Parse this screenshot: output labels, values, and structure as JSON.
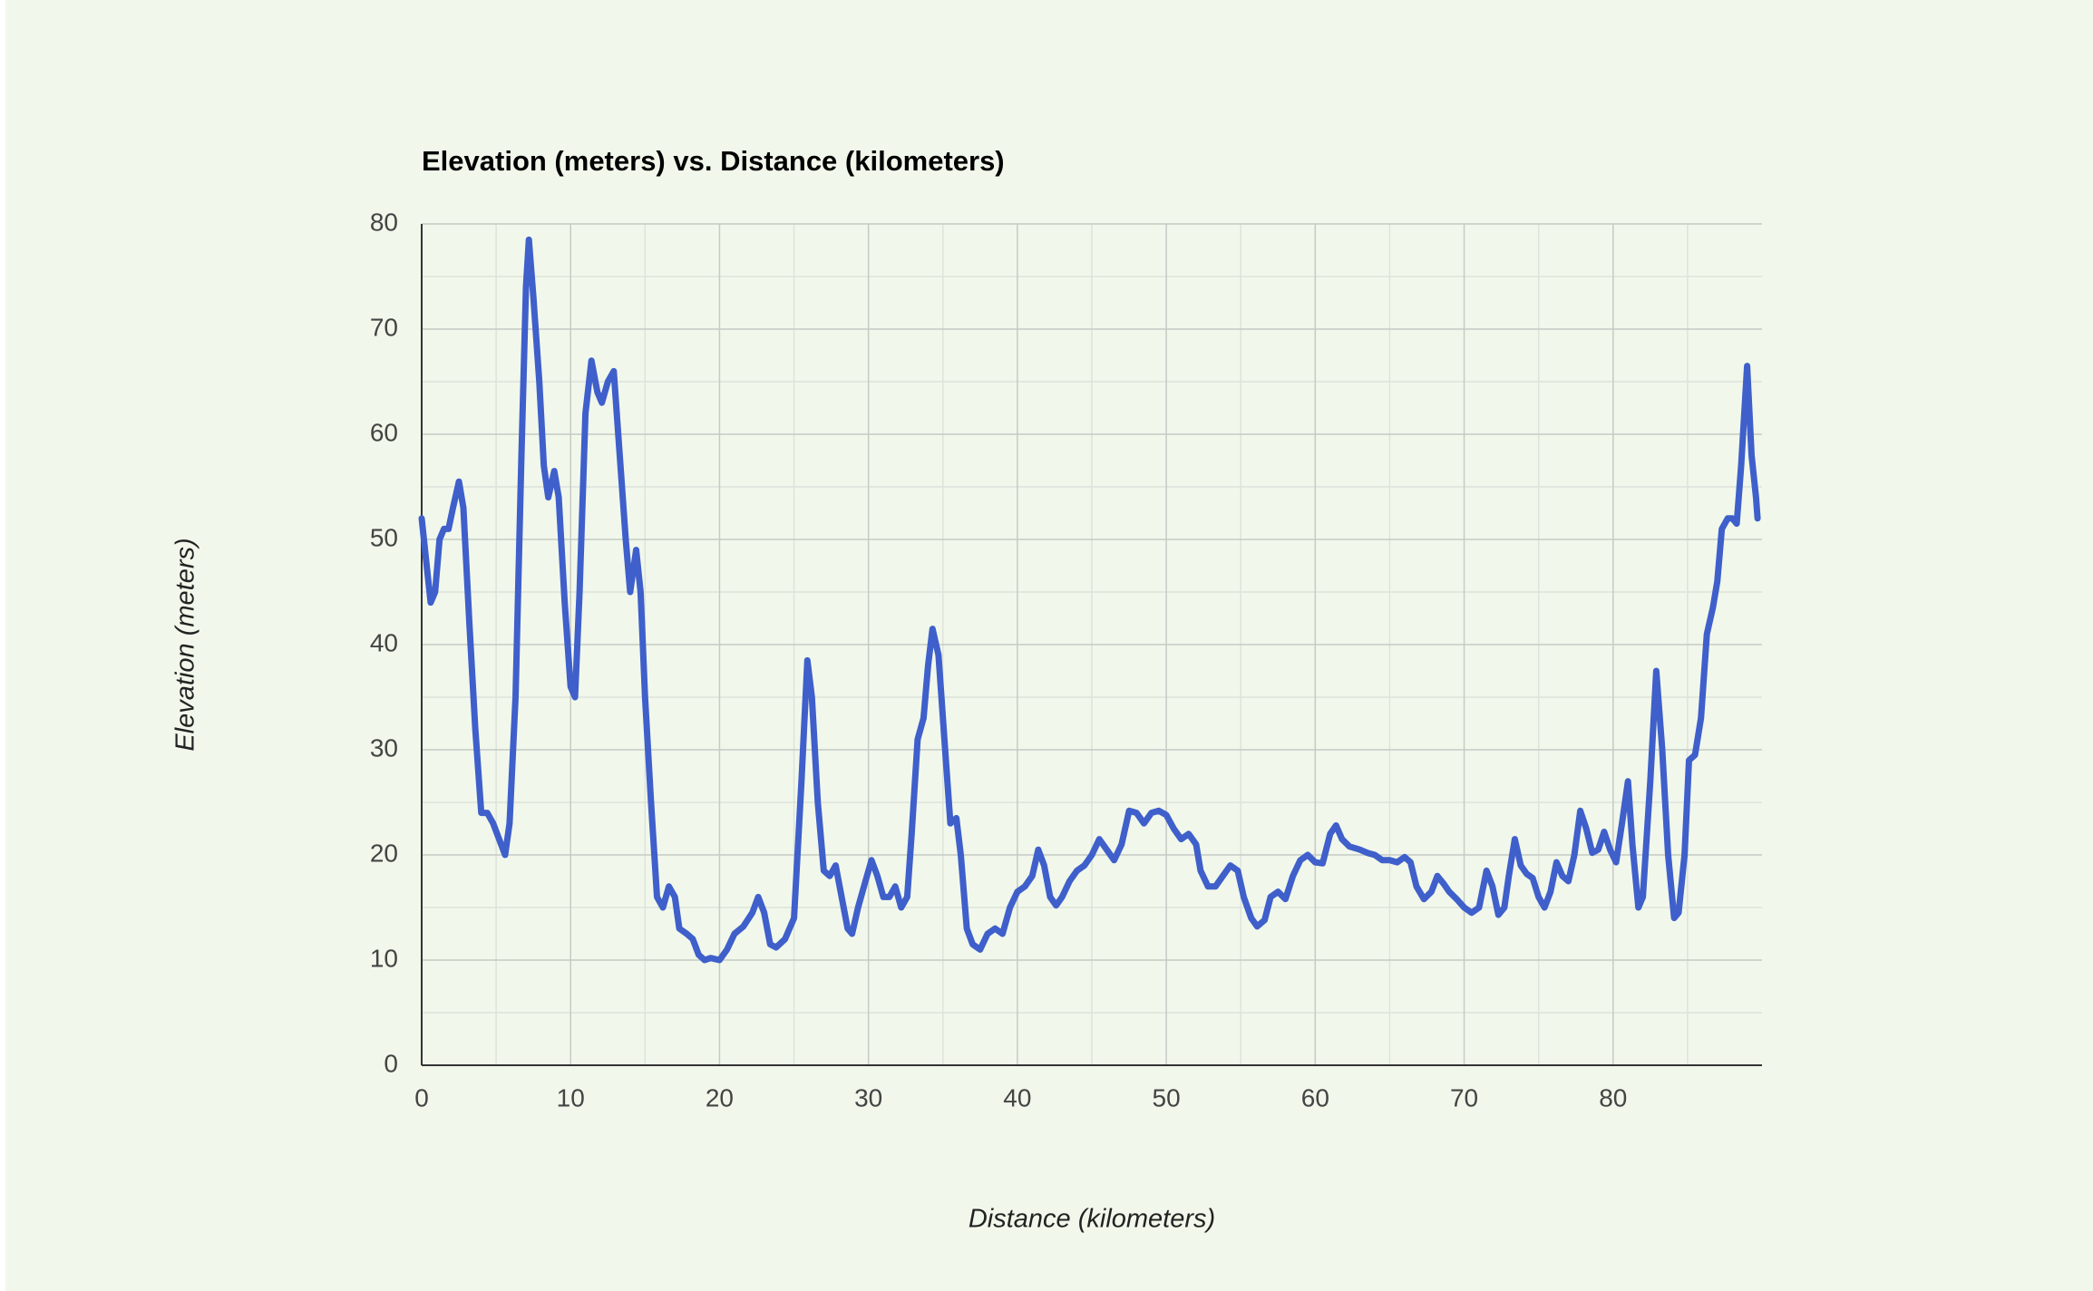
{
  "chart_data": {
    "type": "line",
    "title": "Elevation (meters) vs. Distance (kilometers)",
    "x_label": "Distance (kilometers)",
    "y_label": "Elevation (meters)",
    "xlim": [
      0,
      90
    ],
    "xticks": [
      0,
      10,
      20,
      30,
      40,
      50,
      60,
      70,
      80
    ],
    "ylim": [
      0,
      80
    ],
    "yticks": [
      0,
      10,
      20,
      30,
      40,
      50,
      60,
      70,
      80
    ],
    "grid": true,
    "minor_grid": true,
    "series": [
      {
        "name": "Elevation (meters)",
        "color": "#3f5fcb",
        "x": [
          0,
          0.3,
          0.6,
          0.9,
          1.2,
          1.5,
          1.8,
          2.1,
          2.5,
          2.8,
          3.2,
          3.6,
          4.0,
          4.4,
          4.8,
          5.2,
          5.6,
          5.9,
          6.3,
          6.7,
          7.0,
          7.2,
          7.5,
          7.9,
          8.2,
          8.5,
          8.9,
          9.2,
          9.6,
          10.0,
          10.3,
          10.6,
          11.0,
          11.4,
          11.8,
          12.1,
          12.5,
          12.9,
          13.3,
          13.7,
          14.0,
          14.4,
          14.7,
          15.0,
          15.4,
          15.8,
          16.2,
          16.6,
          17.0,
          17.3,
          17.8,
          18.2,
          18.6,
          19.0,
          19.4,
          20.0,
          20.5,
          21.0,
          21.6,
          22.2,
          22.6,
          23.0,
          23.4,
          23.8,
          24.4,
          25.0,
          25.5,
          25.9,
          26.2,
          26.6,
          27.0,
          27.4,
          27.8,
          28.2,
          28.6,
          28.9,
          29.3,
          29.7,
          30.2,
          30.6,
          31.0,
          31.4,
          31.8,
          32.2,
          32.6,
          32.9,
          33.3,
          33.7,
          34.0,
          34.3,
          34.7,
          35.1,
          35.5,
          35.9,
          36.2,
          36.6,
          37.0,
          37.5,
          38.0,
          38.5,
          39.0,
          39.5,
          40.0,
          40.5,
          41.0,
          41.4,
          41.8,
          42.2,
          42.6,
          43.0,
          43.5,
          44.0,
          44.5,
          45.0,
          45.5,
          46.0,
          46.5,
          47.0,
          47.5,
          48.0,
          48.5,
          49.0,
          49.5,
          50.0,
          50.5,
          51.0,
          51.5,
          52.0,
          52.3,
          52.8,
          53.3,
          53.8,
          54.3,
          54.8,
          55.2,
          55.7,
          56.1,
          56.6,
          57.0,
          57.5,
          58.0,
          58.5,
          59.0,
          59.5,
          60.0,
          60.5,
          61.0,
          61.4,
          61.8,
          62.3,
          63.0,
          63.5,
          64.0,
          64.5,
          65.0,
          65.5,
          66.0,
          66.4,
          66.8,
          67.3,
          67.8,
          68.2,
          68.6,
          69.0,
          69.5,
          70.0,
          70.5,
          71.0,
          71.5,
          71.9,
          72.3,
          72.7,
          73.0,
          73.4,
          73.8,
          74.2,
          74.6,
          75.0,
          75.4,
          75.8,
          76.2,
          76.6,
          77.0,
          77.4,
          77.8,
          78.2,
          78.6,
          79.0,
          79.4,
          79.8,
          80.2,
          80.6,
          81.0,
          81.3,
          81.7,
          82.0,
          82.5,
          82.9,
          83.3,
          83.7,
          84.1,
          84.4,
          84.8,
          85.1,
          85.5,
          85.9,
          86.3,
          86.7,
          87.0,
          87.3,
          87.7,
          88.0,
          88.3,
          88.6,
          89.0,
          89.3,
          89.6,
          89.7
        ],
        "values": [
          52,
          48,
          44,
          45,
          50,
          51,
          51,
          53,
          55.5,
          53,
          42,
          32,
          24,
          24,
          23,
          21.5,
          20,
          23,
          35,
          58,
          74,
          78.5,
          73,
          65,
          57,
          54,
          56.5,
          54,
          44,
          36,
          35,
          45,
          62,
          67,
          64,
          63,
          65,
          66,
          58,
          50,
          45,
          49,
          45,
          35,
          25,
          16,
          15,
          17,
          16,
          13,
          12.5,
          12,
          10.5,
          10,
          10.2,
          10,
          11,
          12.5,
          13.2,
          14.5,
          16,
          14.5,
          11.5,
          11.2,
          12,
          14,
          27,
          38.5,
          35,
          25,
          18.5,
          18,
          19,
          16,
          13,
          12.5,
          15,
          17,
          19.5,
          18,
          16,
          16,
          17,
          15,
          16,
          22,
          31,
          33,
          38,
          41.5,
          39,
          31,
          23,
          23.5,
          20,
          13,
          11.5,
          11,
          12.5,
          13,
          12.5,
          15,
          16.5,
          17,
          18,
          20.5,
          19,
          16,
          15.2,
          16,
          17.5,
          18.5,
          19,
          20,
          21.5,
          20.5,
          19.5,
          21,
          24.2,
          24,
          23,
          24,
          24.2,
          23.8,
          22.5,
          21.5,
          22,
          21,
          18.5,
          17,
          17,
          18,
          19,
          18.5,
          16,
          14,
          13.2,
          13.8,
          16,
          16.5,
          15.8,
          18,
          19.5,
          20,
          19.3,
          19.2,
          22,
          22.8,
          21.5,
          20.8,
          20.5,
          20.2,
          20,
          19.5,
          19.5,
          19.3,
          19.8,
          19.3,
          17,
          15.8,
          16.5,
          18,
          17.3,
          16.5,
          15.8,
          15,
          14.5,
          15,
          18.5,
          17,
          14.3,
          15,
          18,
          21.5,
          19,
          18.2,
          17.8,
          16,
          15,
          16.5,
          19.3,
          18,
          17.5,
          20,
          24.2,
          22.5,
          20.2,
          20.5,
          22.2,
          20.5,
          19.3,
          23,
          27,
          21,
          15,
          16,
          27,
          37.5,
          30,
          20,
          14,
          14.5,
          20,
          29,
          29.5,
          33,
          41,
          43.5,
          46,
          51,
          52,
          52,
          51.5,
          57,
          66.5,
          58,
          54,
          52
        ]
      }
    ]
  }
}
